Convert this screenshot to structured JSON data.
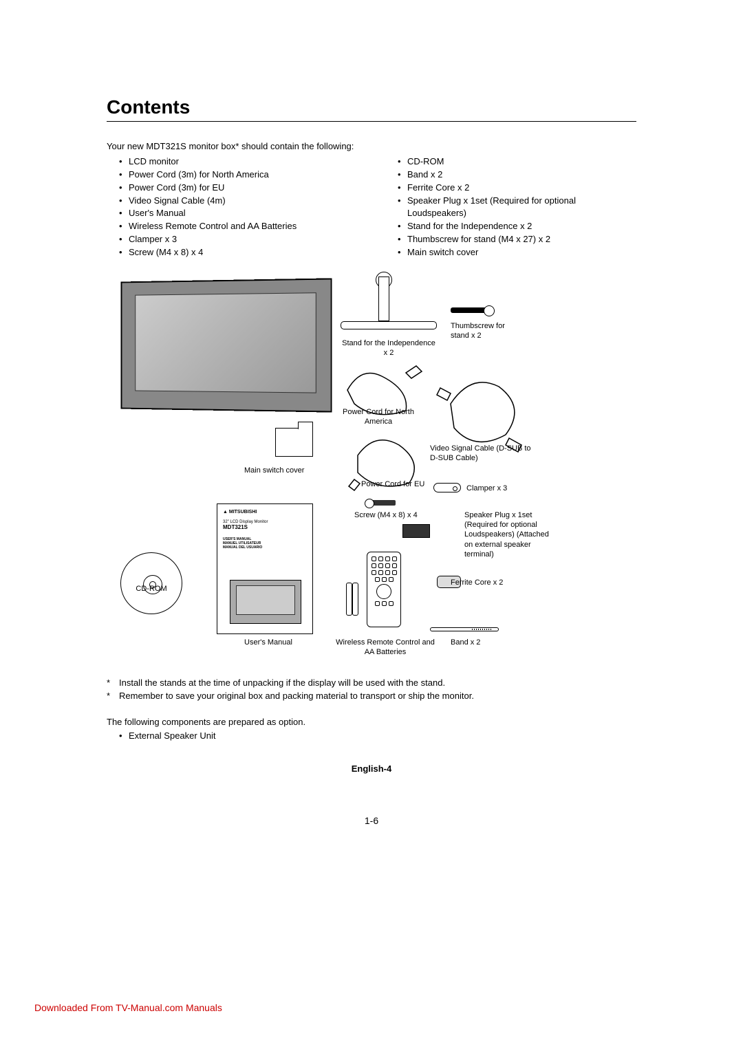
{
  "title": "Contents",
  "intro": "Your new MDT321S monitor box* should contain the following:",
  "left_items": [
    "LCD monitor",
    "Power Cord (3m) for North America",
    "Power Cord (3m) for EU",
    "Video Signal Cable (4m)",
    "User's Manual",
    "Wireless Remote Control and AA Batteries",
    "Clamper x 3",
    "Screw (M4 x 8) x 4"
  ],
  "right_items": [
    "CD-ROM",
    "Band x 2",
    "Ferrite Core x 2",
    "Speaker Plug x 1set (Required for optional Loudspeakers)",
    "Stand for the Independence x 2",
    "Thumbscrew for stand (M4 x 27) x 2",
    "Main switch cover"
  ],
  "diagram": {
    "thumbscrew": "Thumbscrew for stand x 2",
    "stand": "Stand for the Independence x 2",
    "switch_cover": "Main switch cover",
    "cord_na": "Power Cord for North America",
    "cord_eu": "Power Cord for EU",
    "video_cable": "Video Signal Cable (D-SUB to D-SUB Cable)",
    "clamper": "Clamper x 3",
    "screw": "Screw (M4 x 8) x 4",
    "speaker_plug": "Speaker Plug x 1set (Required for optional Loudspeakers) (Attached on external speaker terminal)",
    "ferrite": "Ferrite Core x 2",
    "cdrom": "CD-ROM",
    "manual": "User's Manual",
    "remote": "Wireless Remote Control and AA Batteries",
    "band": "Band x 2",
    "manual_brand": "▲ MITSUBISHI",
    "manual_sub": "32\" LCD Display Monitor",
    "manual_model": "MDT321S",
    "manual_lang": "USER'S MANUAL\nMANUEL UTILISATEUR\nMANUAL DEL USUARIO"
  },
  "notes": [
    "Install the stands at the time of unpacking if the display will be used with the stand.",
    "Remember to save your original box and packing material to transport or ship the monitor."
  ],
  "option_intro": "The following components are prepared as option.",
  "option_items": [
    "External Speaker Unit"
  ],
  "page_label": "English-4",
  "page_num": "1-6",
  "footer": "Downloaded From TV-Manual.com Manuals"
}
